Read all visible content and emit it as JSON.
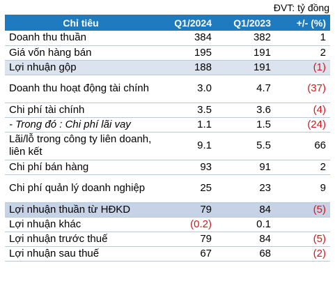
{
  "unit_label": "ĐVT: tỷ đồng",
  "table": {
    "headers": [
      "Chỉ tiêu",
      "Q1/2024",
      "Q1/2023",
      "+/- (%)"
    ],
    "rows": [
      {
        "label": "Doanh thu thuần",
        "q1_2024": "384",
        "q1_2023": "382",
        "change": "1"
      },
      {
        "label": "Giá vốn hàng bán",
        "q1_2024": "195",
        "q1_2023": "191",
        "change": "2"
      },
      {
        "label": "Lợi nhuận gộp",
        "q1_2024": "188",
        "q1_2023": "191",
        "change": "(1)"
      },
      {
        "label": "Doanh thu hoạt động tài chính",
        "q1_2024": "3.0",
        "q1_2023": "4.7",
        "change": "(37)"
      },
      {
        "label": "Chi phí tài chính",
        "q1_2024": "3.5",
        "q1_2023": "3.6",
        "change": "(4)"
      },
      {
        "label": "- Trong đó : Chi phí lãi vay",
        "q1_2024": "1.1",
        "q1_2023": "1.5",
        "change": "(24)"
      },
      {
        "label": "Lãi/lỗ trong công ty liên doanh, liên kết",
        "q1_2024": "9.1",
        "q1_2023": "5.5",
        "change": "66"
      },
      {
        "label": "Chi phí bán hàng",
        "q1_2024": "93",
        "q1_2023": "91",
        "change": "2"
      },
      {
        "label": "Chi phí quản lý doanh nghiệp",
        "q1_2024": "25",
        "q1_2023": "23",
        "change": "9"
      },
      {
        "label": "Lợi nhuận thuần từ HĐKD",
        "q1_2024": "79",
        "q1_2023": "84",
        "change": "(5)"
      },
      {
        "label": "Lợi nhuận khác",
        "q1_2024": "(0.2)",
        "q1_2023": "0.1",
        "change": ""
      },
      {
        "label": "Lợi nhuận trước thuế",
        "q1_2024": "79",
        "q1_2023": "84",
        "change": "(5)"
      },
      {
        "label": "Lợi nhuận sau thuế",
        "q1_2024": "67",
        "q1_2023": "68",
        "change": "(2)"
      }
    ]
  }
}
